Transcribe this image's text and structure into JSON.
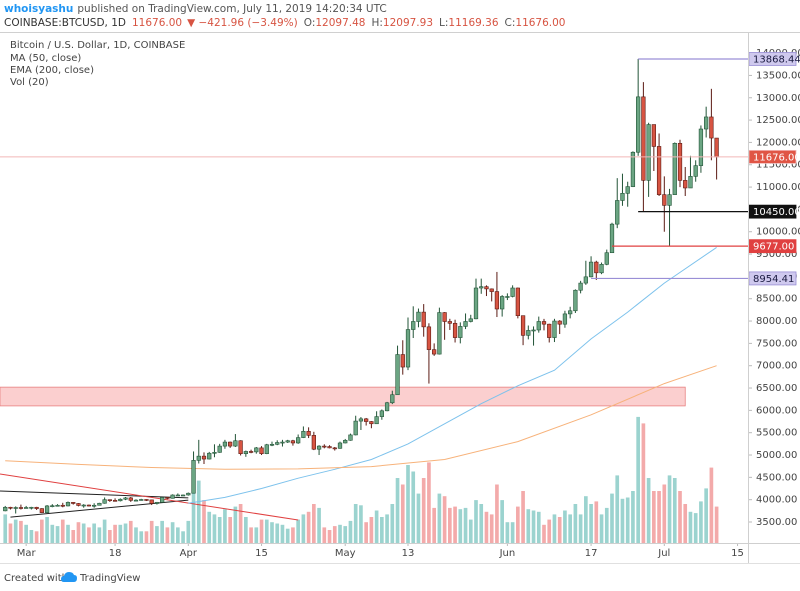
{
  "header": {
    "user": "whoisyashu",
    "published": "published on TradingView.com, July 11, 2019 14:20:34 UTC",
    "symbol": "COINBASE:BTCUSD, 1D",
    "last": "11676.00",
    "change": "▼ −421.96 (−3.49%)",
    "quote": [
      {
        "label": "O:",
        "value": "12097.48"
      },
      {
        "label": "H:",
        "value": "12097.93"
      },
      {
        "label": "L:",
        "value": "11169.36"
      },
      {
        "label": "C:",
        "value": "11676.00"
      }
    ]
  },
  "footer": {
    "text": "Created with",
    "brand": "TradingView"
  },
  "chart_data": {
    "type": "candlestick",
    "title": "Bitcoin / U.S. Dollar, 1D, COINBASE",
    "up_color": "#6ba583",
    "up_border": "#225437",
    "down_color": "#d75442",
    "down_border": "#5b1a13",
    "volume_name": "Vol (20)",
    "volume_up_color": "#9bd3cf",
    "volume_down_color": "#f3aaaa",
    "xlim": [
      "2019-02-24",
      "2019-07-17"
    ],
    "ylim": [
      3030,
      14450
    ],
    "volume_ylim": [
      0,
      100
    ],
    "grid": false,
    "yticks": [
      {
        "value": 3500,
        "label": "3500.00"
      },
      {
        "value": 4000,
        "label": "4000.00"
      },
      {
        "value": 4500,
        "label": "4500.00"
      },
      {
        "value": 5000,
        "label": "5000.00"
      },
      {
        "value": 5500,
        "label": "5500.00"
      },
      {
        "value": 6000,
        "label": "6000.00"
      },
      {
        "value": 6500,
        "label": "6500.00"
      },
      {
        "value": 7000,
        "label": "7000.00"
      },
      {
        "value": 7500,
        "label": "7500.00"
      },
      {
        "value": 8000,
        "label": "8000.00"
      },
      {
        "value": 8500,
        "label": "8500.00"
      },
      {
        "value": 9000,
        "label": "9000.00"
      },
      {
        "value": 9500,
        "label": "9500.00"
      },
      {
        "value": 10000,
        "label": "10000.00"
      },
      {
        "value": 10500,
        "label": "10500.00"
      },
      {
        "value": 11000,
        "label": "11000.00"
      },
      {
        "value": 11500,
        "label": "11500.00"
      },
      {
        "value": 12000,
        "label": "12000.00"
      },
      {
        "value": 12500,
        "label": "12500.00"
      },
      {
        "value": 13000,
        "label": "13000.00"
      },
      {
        "value": 13500,
        "label": "13500.00"
      },
      {
        "value": 14000,
        "label": "14000.00"
      }
    ],
    "xticks": [
      {
        "value": "2019-03-01",
        "label": "Mar"
      },
      {
        "value": "2019-03-18",
        "label": "18"
      },
      {
        "value": "2019-04-01",
        "label": "Apr"
      },
      {
        "value": "2019-04-15",
        "label": "15"
      },
      {
        "value": "2019-05-01",
        "label": "May"
      },
      {
        "value": "2019-05-13",
        "label": "13"
      },
      {
        "value": "2019-06-01",
        "label": "Jun"
      },
      {
        "value": "2019-06-17",
        "label": "17"
      },
      {
        "value": "2019-07-01",
        "label": "Jul"
      },
      {
        "value": "2019-07-15",
        "label": "15"
      }
    ],
    "x": [
      "2019-02-25",
      "2019-02-26",
      "2019-02-27",
      "2019-02-28",
      "2019-03-01",
      "2019-03-02",
      "2019-03-03",
      "2019-03-04",
      "2019-03-05",
      "2019-03-06",
      "2019-03-07",
      "2019-03-08",
      "2019-03-09",
      "2019-03-10",
      "2019-03-11",
      "2019-03-12",
      "2019-03-13",
      "2019-03-14",
      "2019-03-15",
      "2019-03-16",
      "2019-03-17",
      "2019-03-18",
      "2019-03-19",
      "2019-03-20",
      "2019-03-21",
      "2019-03-22",
      "2019-03-23",
      "2019-03-24",
      "2019-03-25",
      "2019-03-26",
      "2019-03-27",
      "2019-03-28",
      "2019-03-29",
      "2019-03-30",
      "2019-03-31",
      "2019-04-01",
      "2019-04-02",
      "2019-04-03",
      "2019-04-04",
      "2019-04-05",
      "2019-04-06",
      "2019-04-07",
      "2019-04-08",
      "2019-04-09",
      "2019-04-10",
      "2019-04-11",
      "2019-04-12",
      "2019-04-13",
      "2019-04-14",
      "2019-04-15",
      "2019-04-16",
      "2019-04-17",
      "2019-04-18",
      "2019-04-19",
      "2019-04-20",
      "2019-04-21",
      "2019-04-22",
      "2019-04-23",
      "2019-04-24",
      "2019-04-25",
      "2019-04-26",
      "2019-04-27",
      "2019-04-28",
      "2019-04-29",
      "2019-04-30",
      "2019-05-01",
      "2019-05-02",
      "2019-05-03",
      "2019-05-04",
      "2019-05-05",
      "2019-05-06",
      "2019-05-07",
      "2019-05-08",
      "2019-05-09",
      "2019-05-10",
      "2019-05-11",
      "2019-05-12",
      "2019-05-13",
      "2019-05-14",
      "2019-05-15",
      "2019-05-16",
      "2019-05-17",
      "2019-05-18",
      "2019-05-19",
      "2019-05-20",
      "2019-05-21",
      "2019-05-22",
      "2019-05-23",
      "2019-05-24",
      "2019-05-25",
      "2019-05-26",
      "2019-05-27",
      "2019-05-28",
      "2019-05-29",
      "2019-05-30",
      "2019-05-31",
      "2019-06-01",
      "2019-06-02",
      "2019-06-03",
      "2019-06-04",
      "2019-06-05",
      "2019-06-06",
      "2019-06-07",
      "2019-06-08",
      "2019-06-09",
      "2019-06-10",
      "2019-06-11",
      "2019-06-12",
      "2019-06-13",
      "2019-06-14",
      "2019-06-15",
      "2019-06-16",
      "2019-06-17",
      "2019-06-18",
      "2019-06-19",
      "2019-06-20",
      "2019-06-21",
      "2019-06-22",
      "2019-06-23",
      "2019-06-24",
      "2019-06-25",
      "2019-06-26",
      "2019-06-27",
      "2019-06-28",
      "2019-06-29",
      "2019-06-30",
      "2019-07-01",
      "2019-07-02",
      "2019-07-03",
      "2019-07-04",
      "2019-07-05",
      "2019-07-06",
      "2019-07-07",
      "2019-07-08",
      "2019-07-09",
      "2019-07-10",
      "2019-07-11"
    ],
    "open": [
      3750,
      3830,
      3810,
      3825,
      3820,
      3825,
      3830,
      3800,
      3710,
      3860,
      3865,
      3875,
      3860,
      3940,
      3915,
      3870,
      3880,
      3870,
      3875,
      3920,
      4000,
      3985,
      3975,
      4010,
      4040,
      3985,
      3990,
      4005,
      3995,
      3915,
      3940,
      4050,
      4030,
      4105,
      4105,
      4105,
      4145,
      4880,
      4975,
      4910,
      5040,
      5060,
      5200,
      5290,
      5200,
      5320,
      5030,
      5080,
      5070,
      5160,
      5030,
      5230,
      5240,
      5280,
      5290,
      5320,
      5270,
      5390,
      5530,
      5440,
      5130,
      5200,
      5190,
      5160,
      5150,
      5270,
      5330,
      5450,
      5760,
      5810,
      5750,
      5700,
      5860,
      5990,
      6170,
      6350,
      7250,
      6970,
      7810,
      7990,
      8200,
      7870,
      7360,
      7260,
      8190,
      7990,
      7950,
      7630,
      7880,
      7990,
      8050,
      8740,
      8770,
      8720,
      8660,
      8270,
      8550,
      8550,
      8740,
      8120,
      7680,
      7790,
      7800,
      7990,
      7930,
      7630,
      8000,
      7930,
      8160,
      8230,
      8690,
      8850,
      8990,
      9320,
      9080,
      9270,
      9530,
      10170,
      10700,
      10860,
      11010,
      11780,
      13020,
      11150,
      12400,
      11910,
      10830,
      10590,
      10830,
      11980,
      11150,
      10980,
      11240,
      11480,
      12300,
      12570,
      12097.48
    ],
    "high": [
      3860,
      3840,
      3850,
      3890,
      3860,
      3840,
      3840,
      3810,
      3880,
      3900,
      3900,
      3930,
      3960,
      3945,
      3925,
      3900,
      3890,
      3920,
      3930,
      4050,
      4005,
      4030,
      4030,
      4060,
      4060,
      4010,
      4020,
      4010,
      4000,
      3950,
      4060,
      4060,
      4120,
      4140,
      4115,
      4160,
      5080,
      5340,
      5060,
      5070,
      5240,
      5250,
      5340,
      5300,
      5470,
      5330,
      5100,
      5120,
      5180,
      5200,
      5250,
      5300,
      5330,
      5340,
      5340,
      5340,
      5460,
      5640,
      5620,
      5520,
      5220,
      5240,
      5220,
      5180,
      5300,
      5360,
      5480,
      5880,
      5850,
      5830,
      5760,
      5980,
      6020,
      6190,
      6440,
      7450,
      7570,
      8080,
      8330,
      8280,
      8380,
      7950,
      7500,
      8300,
      8200,
      8050,
      8030,
      7970,
      8170,
      8140,
      8950,
      8950,
      8800,
      8730,
      9100,
      8580,
      8620,
      8800,
      8750,
      8120,
      7900,
      7880,
      8100,
      8050,
      7940,
      8050,
      8020,
      8230,
      8320,
      8710,
      8900,
      9350,
      9450,
      9350,
      9310,
      9600,
      10200,
      11200,
      11300,
      11120,
      11800,
      13868.44,
      13350,
      12440,
      12400,
      12200,
      11240,
      10960,
      12000,
      12060,
      11450,
      11700,
      11600,
      12380,
      12800,
      13200,
      12097.93
    ],
    "low": [
      3740,
      3780,
      3690,
      3780,
      3810,
      3780,
      3770,
      3700,
      3700,
      3830,
      3850,
      3830,
      3850,
      3890,
      3850,
      3820,
      3850,
      3820,
      3870,
      3910,
      3950,
      3960,
      3960,
      3990,
      3950,
      3970,
      3980,
      3970,
      3880,
      3890,
      3935,
      4010,
      4025,
      4080,
      4085,
      4090,
      4145,
      4810,
      4800,
      4900,
      4950,
      5050,
      5140,
      5160,
      5180,
      4990,
      4960,
      5040,
      5030,
      5000,
      5020,
      5200,
      5220,
      5190,
      5270,
      5210,
      5250,
      5380,
      5380,
      5110,
      5000,
      5150,
      5150,
      5100,
      5140,
      5260,
      5320,
      5440,
      5560,
      5660,
      5600,
      5700,
      5790,
      5980,
      6140,
      6350,
      6800,
      6900,
      7620,
      7860,
      7650,
      6600,
      7220,
      7250,
      7580,
      7800,
      7520,
      7500,
      7820,
      7970,
      8040,
      8610,
      8560,
      8440,
      8090,
      8100,
      8470,
      8530,
      8060,
      7460,
      7590,
      7450,
      7740,
      7790,
      7520,
      7530,
      7710,
      7850,
      8060,
      8180,
      8620,
      8810,
      8980,
      8920,
      9050,
      9250,
      9530,
      10080,
      10580,
      10560,
      11000,
      11700,
      10450,
      10780,
      11360,
      10800,
      10000,
      9677,
      10830,
      11000,
      10800,
      10980,
      11120,
      11320,
      12110,
      11600,
      11169.36
    ],
    "close": [
      3830,
      3810,
      3825,
      3820,
      3825,
      3830,
      3800,
      3710,
      3860,
      3865,
      3875,
      3860,
      3940,
      3915,
      3870,
      3880,
      3870,
      3875,
      3920,
      4000,
      3985,
      3975,
      4010,
      4040,
      3985,
      3990,
      4005,
      3995,
      3915,
      3940,
      4050,
      4030,
      4105,
      4105,
      4105,
      4145,
      4880,
      4975,
      4910,
      5040,
      5060,
      5200,
      5290,
      5200,
      5320,
      5030,
      5080,
      5070,
      5160,
      5030,
      5230,
      5240,
      5280,
      5290,
      5320,
      5270,
      5390,
      5530,
      5440,
      5130,
      5200,
      5190,
      5160,
      5150,
      5270,
      5330,
      5450,
      5760,
      5810,
      5750,
      5700,
      5860,
      5990,
      6170,
      6350,
      7250,
      6970,
      7810,
      7990,
      8200,
      7870,
      7360,
      7260,
      8190,
      7990,
      7950,
      7630,
      7880,
      7990,
      8050,
      8740,
      8770,
      8720,
      8660,
      8270,
      8550,
      8550,
      8740,
      8120,
      7680,
      7790,
      7800,
      7990,
      7930,
      7630,
      8000,
      7930,
      8160,
      8230,
      8690,
      8850,
      8990,
      9320,
      9080,
      9270,
      9530,
      10170,
      10700,
      10860,
      11010,
      11780,
      13020,
      11150,
      12400,
      11910,
      10830,
      10590,
      10830,
      11980,
      11150,
      10980,
      11240,
      11480,
      12300,
      12570,
      12097.96,
      11676
    ],
    "volume": [
      22,
      15,
      18,
      17,
      14,
      10,
      9,
      18,
      20,
      14,
      13,
      18,
      14,
      10,
      16,
      15,
      12,
      15,
      12,
      18,
      10,
      14,
      14,
      15,
      17,
      12,
      9,
      9,
      17,
      13,
      17,
      12,
      16,
      12,
      9,
      17,
      55,
      48,
      33,
      24,
      22,
      20,
      26,
      20,
      28,
      30,
      20,
      12,
      12,
      18,
      18,
      16,
      15,
      14,
      11,
      12,
      18,
      22,
      24,
      30,
      27,
      12,
      10,
      13,
      14,
      13,
      17,
      30,
      29,
      16,
      20,
      25,
      20,
      22,
      30,
      50,
      45,
      60,
      55,
      38,
      50,
      62,
      27,
      38,
      36,
      27,
      28,
      26,
      27,
      18,
      33,
      30,
      24,
      22,
      45,
      33,
      16,
      16,
      28,
      40,
      26,
      25,
      24,
      14,
      18,
      22,
      20,
      25,
      22,
      30,
      22,
      36,
      30,
      32,
      22,
      27,
      38,
      52,
      34,
      35,
      40,
      97,
      92,
      50,
      40,
      40,
      45,
      52,
      50,
      40,
      30,
      24,
      23,
      32,
      42,
      58,
      28
    ],
    "series": [
      {
        "name": "MA (50, close)",
        "color": "#7dc2ec",
        "x": [
          "2019-04-01",
          "2019-04-08",
          "2019-04-15",
          "2019-04-22",
          "2019-04-29",
          "2019-05-06",
          "2019-05-13",
          "2019-05-20",
          "2019-05-27",
          "2019-06-03",
          "2019-06-10",
          "2019-06-17",
          "2019-06-24",
          "2019-07-01",
          "2019-07-11"
        ],
        "values": [
          3920,
          4050,
          4250,
          4480,
          4680,
          4900,
          5250,
          5700,
          6150,
          6550,
          6900,
          7600,
          8200,
          8850,
          9650
        ]
      },
      {
        "name": "EMA (200, close)",
        "color": "#f7b27a",
        "x": [
          "2019-02-25",
          "2019-03-11",
          "2019-03-25",
          "2019-04-08",
          "2019-04-22",
          "2019-05-06",
          "2019-05-20",
          "2019-06-03",
          "2019-06-17",
          "2019-07-01",
          "2019-07-11"
        ],
        "values": [
          4870,
          4790,
          4720,
          4680,
          4690,
          4740,
          4900,
          5300,
          5900,
          6600,
          7000
        ]
      }
    ],
    "zone": {
      "from": "2019-02-24",
      "to": "2019-07-05",
      "low": 6100,
      "high": 6520,
      "color": "#f7a8a8"
    },
    "trendlines": [
      {
        "x": [
          "2019-02-24",
          "2019-04-01"
        ],
        "values": [
          4195,
          4040
        ],
        "color": "#222222"
      },
      {
        "x": [
          "2019-02-26",
          "2019-04-01"
        ],
        "values": [
          3610,
          3990
        ],
        "color": "#222222"
      },
      {
        "x": [
          "2019-02-24",
          "2019-04-22"
        ],
        "values": [
          4575,
          3545
        ],
        "color": "#e04040"
      }
    ],
    "levels": [
      {
        "value": 13868.44,
        "label": "13868.44",
        "from": "2019-06-26",
        "color": "#9a8fd6",
        "label_color": "#1a1a40",
        "label_fill": "#cfc9ee"
      },
      {
        "value": 10450,
        "label": "10450.00",
        "from": "2019-06-26",
        "color": "#111111",
        "label_color": "#ffffff",
        "label_fill": "#111111"
      },
      {
        "value": 9677,
        "label": "9677.00",
        "from": "2019-06-21",
        "color": "#e04040",
        "label_color": "#ffffff",
        "label_fill": "#e04040"
      },
      {
        "value": 8954.41,
        "label": "8954.41",
        "from": "2019-06-17",
        "color": "#9a8fd6",
        "label_color": "#1a1a40",
        "label_fill": "#cfc9ee"
      }
    ],
    "current": {
      "value": 11676,
      "label": "11676.00",
      "color": "#f2b8b8",
      "label_color": "#ffffff",
      "label_fill": "#e05545"
    }
  }
}
